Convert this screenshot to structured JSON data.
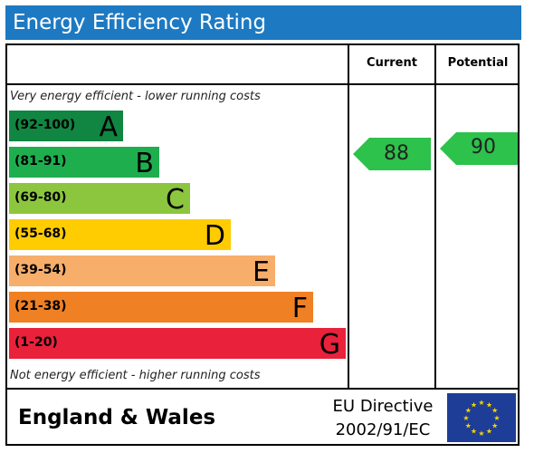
{
  "title": "Energy Efficiency Rating",
  "columns": {
    "current": "Current",
    "potential": "Potential"
  },
  "notes": {
    "top": "Very energy efficient - lower running costs",
    "bottom": "Not energy efficient - higher running costs"
  },
  "footer": {
    "region": "England & Wales",
    "directive_line1": "EU Directive",
    "directive_line2": "2002/91/EC"
  },
  "colors": {
    "title_bar": "#1d7ac2",
    "flag": "#1d3d97",
    "stars": "#f5d400",
    "rating_arrow": "#2cc24b"
  },
  "chart_data": {
    "type": "bar",
    "categories": [
      "A",
      "B",
      "C",
      "D",
      "E",
      "F",
      "G"
    ],
    "bands": [
      {
        "letter": "A",
        "range": "(92-100)",
        "color": "#108642",
        "text_color": "#000000"
      },
      {
        "letter": "B",
        "range": "(81-91)",
        "color": "#1fae4e",
        "text_color": "#000000"
      },
      {
        "letter": "C",
        "range": "(69-80)",
        "color": "#8cc63e",
        "text_color": "#000000"
      },
      {
        "letter": "D",
        "range": "(55-68)",
        "color": "#ffcc02",
        "text_color": "#000000"
      },
      {
        "letter": "E",
        "range": "(39-54)",
        "color": "#f7ae6b",
        "text_color": "#000000"
      },
      {
        "letter": "F",
        "range": "(21-38)",
        "color": "#ef8023",
        "text_color": "#000000"
      },
      {
        "letter": "G",
        "range": "(1-20)",
        "color": "#e9213b",
        "text_color": "#000000"
      }
    ],
    "current": {
      "value": 88,
      "band": "B"
    },
    "potential": {
      "value": 90,
      "band": "B"
    }
  }
}
